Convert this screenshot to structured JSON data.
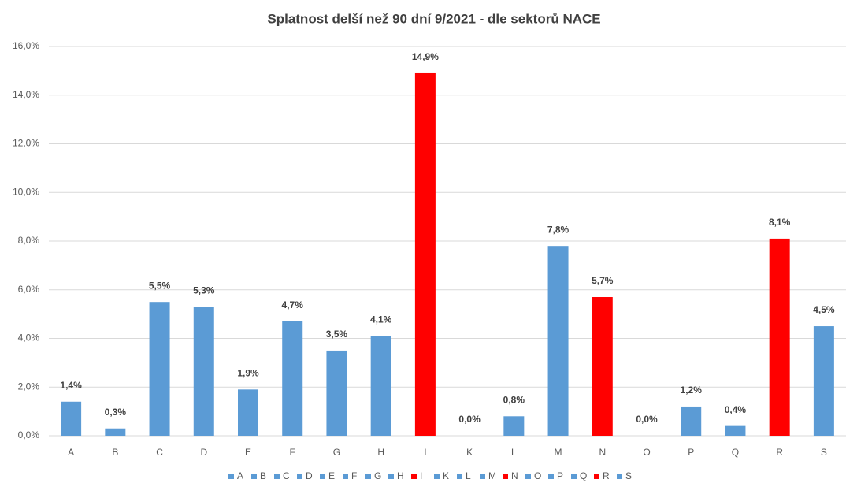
{
  "chart_data": {
    "type": "bar",
    "title": "Splatnost delší než 90 dní 9/2021 - dle sektorů NACE",
    "categories": [
      "A",
      "B",
      "C",
      "D",
      "E",
      "F",
      "G",
      "H",
      "I",
      "K",
      "L",
      "M",
      "N",
      "O",
      "P",
      "Q",
      "R",
      "S"
    ],
    "values": [
      1.4,
      0.3,
      5.5,
      5.3,
      1.9,
      4.7,
      3.5,
      4.1,
      14.9,
      0.0,
      0.8,
      7.8,
      5.7,
      0.0,
      1.2,
      0.4,
      8.1,
      4.5
    ],
    "value_labels": [
      "1,4%",
      "0,3%",
      "5,5%",
      "5,3%",
      "1,9%",
      "4,7%",
      "3,5%",
      "4,1%",
      "14,9%",
      "0,0%",
      "0,8%",
      "7,8%",
      "5,7%",
      "0,0%",
      "1,2%",
      "0,4%",
      "8,1%",
      "4,5%"
    ],
    "colors": [
      "#5b9bd5",
      "#5b9bd5",
      "#5b9bd5",
      "#5b9bd5",
      "#5b9bd5",
      "#5b9bd5",
      "#5b9bd5",
      "#5b9bd5",
      "#ff0000",
      "#5b9bd5",
      "#5b9bd5",
      "#5b9bd5",
      "#ff0000",
      "#5b9bd5",
      "#5b9bd5",
      "#5b9bd5",
      "#ff0000",
      "#5b9bd5"
    ],
    "ylim": [
      0,
      16
    ],
    "yticks": [
      {
        "value": 0,
        "label": "0,0%"
      },
      {
        "value": 2,
        "label": "2,0%"
      },
      {
        "value": 4,
        "label": "4,0%"
      },
      {
        "value": 6,
        "label": "6,0%"
      },
      {
        "value": 8,
        "label": "8,0%"
      },
      {
        "value": 10,
        "label": "10,0%"
      },
      {
        "value": 12,
        "label": "12,0%"
      },
      {
        "value": 14,
        "label": "14,0%"
      },
      {
        "value": 16,
        "label": "16,0%"
      }
    ],
    "grid": true,
    "legend": "bottom"
  }
}
